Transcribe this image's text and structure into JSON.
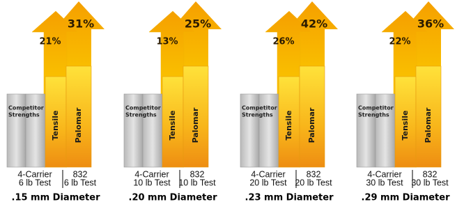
{
  "panels": [
    {
      "tensile_gain": "21%",
      "palomar_gain": "31%",
      "competitor_label": [
        "Competitor",
        "Strengths"
      ],
      "tensile_label": "Tensile",
      "palomar_label": "Palomar",
      "left_caption": [
        "4-Carrier",
        "6 lb Test"
      ],
      "right_caption": [
        "832",
        "6 lb Test"
      ],
      "diameter": ".15 mm Diameter"
    },
    {
      "tensile_gain": "13%",
      "palomar_gain": "25%",
      "competitor_label": [
        "Competitor",
        "Strengths"
      ],
      "tensile_label": "Tensile",
      "palomar_label": "Palomar",
      "left_caption": [
        "4-Carrier",
        "10 lb Test"
      ],
      "right_caption": [
        "832",
        "10 lb Test"
      ],
      "diameter": ".20 mm Diameter"
    },
    {
      "tensile_gain": "26%",
      "palomar_gain": "42%",
      "competitor_label": [
        "Competitor",
        "Strengths"
      ],
      "tensile_label": "Tensile",
      "palomar_label": "Palomar",
      "left_caption": [
        "4-Carrier",
        "20 lb Test"
      ],
      "right_caption": [
        "832",
        "20 lb Test"
      ],
      "diameter": ".23 mm Diameter"
    },
    {
      "tensile_gain": "22%",
      "palomar_gain": "36%",
      "competitor_label": [
        "Competitor",
        "Strengths"
      ],
      "tensile_label": "Tensile",
      "palomar_label": "Palomar",
      "left_caption": [
        "4-Carrier",
        "30 lb Test"
      ],
      "right_caption": [
        "832",
        "30 lb Test"
      ],
      "diameter": ".29 mm Diameter"
    }
  ]
}
